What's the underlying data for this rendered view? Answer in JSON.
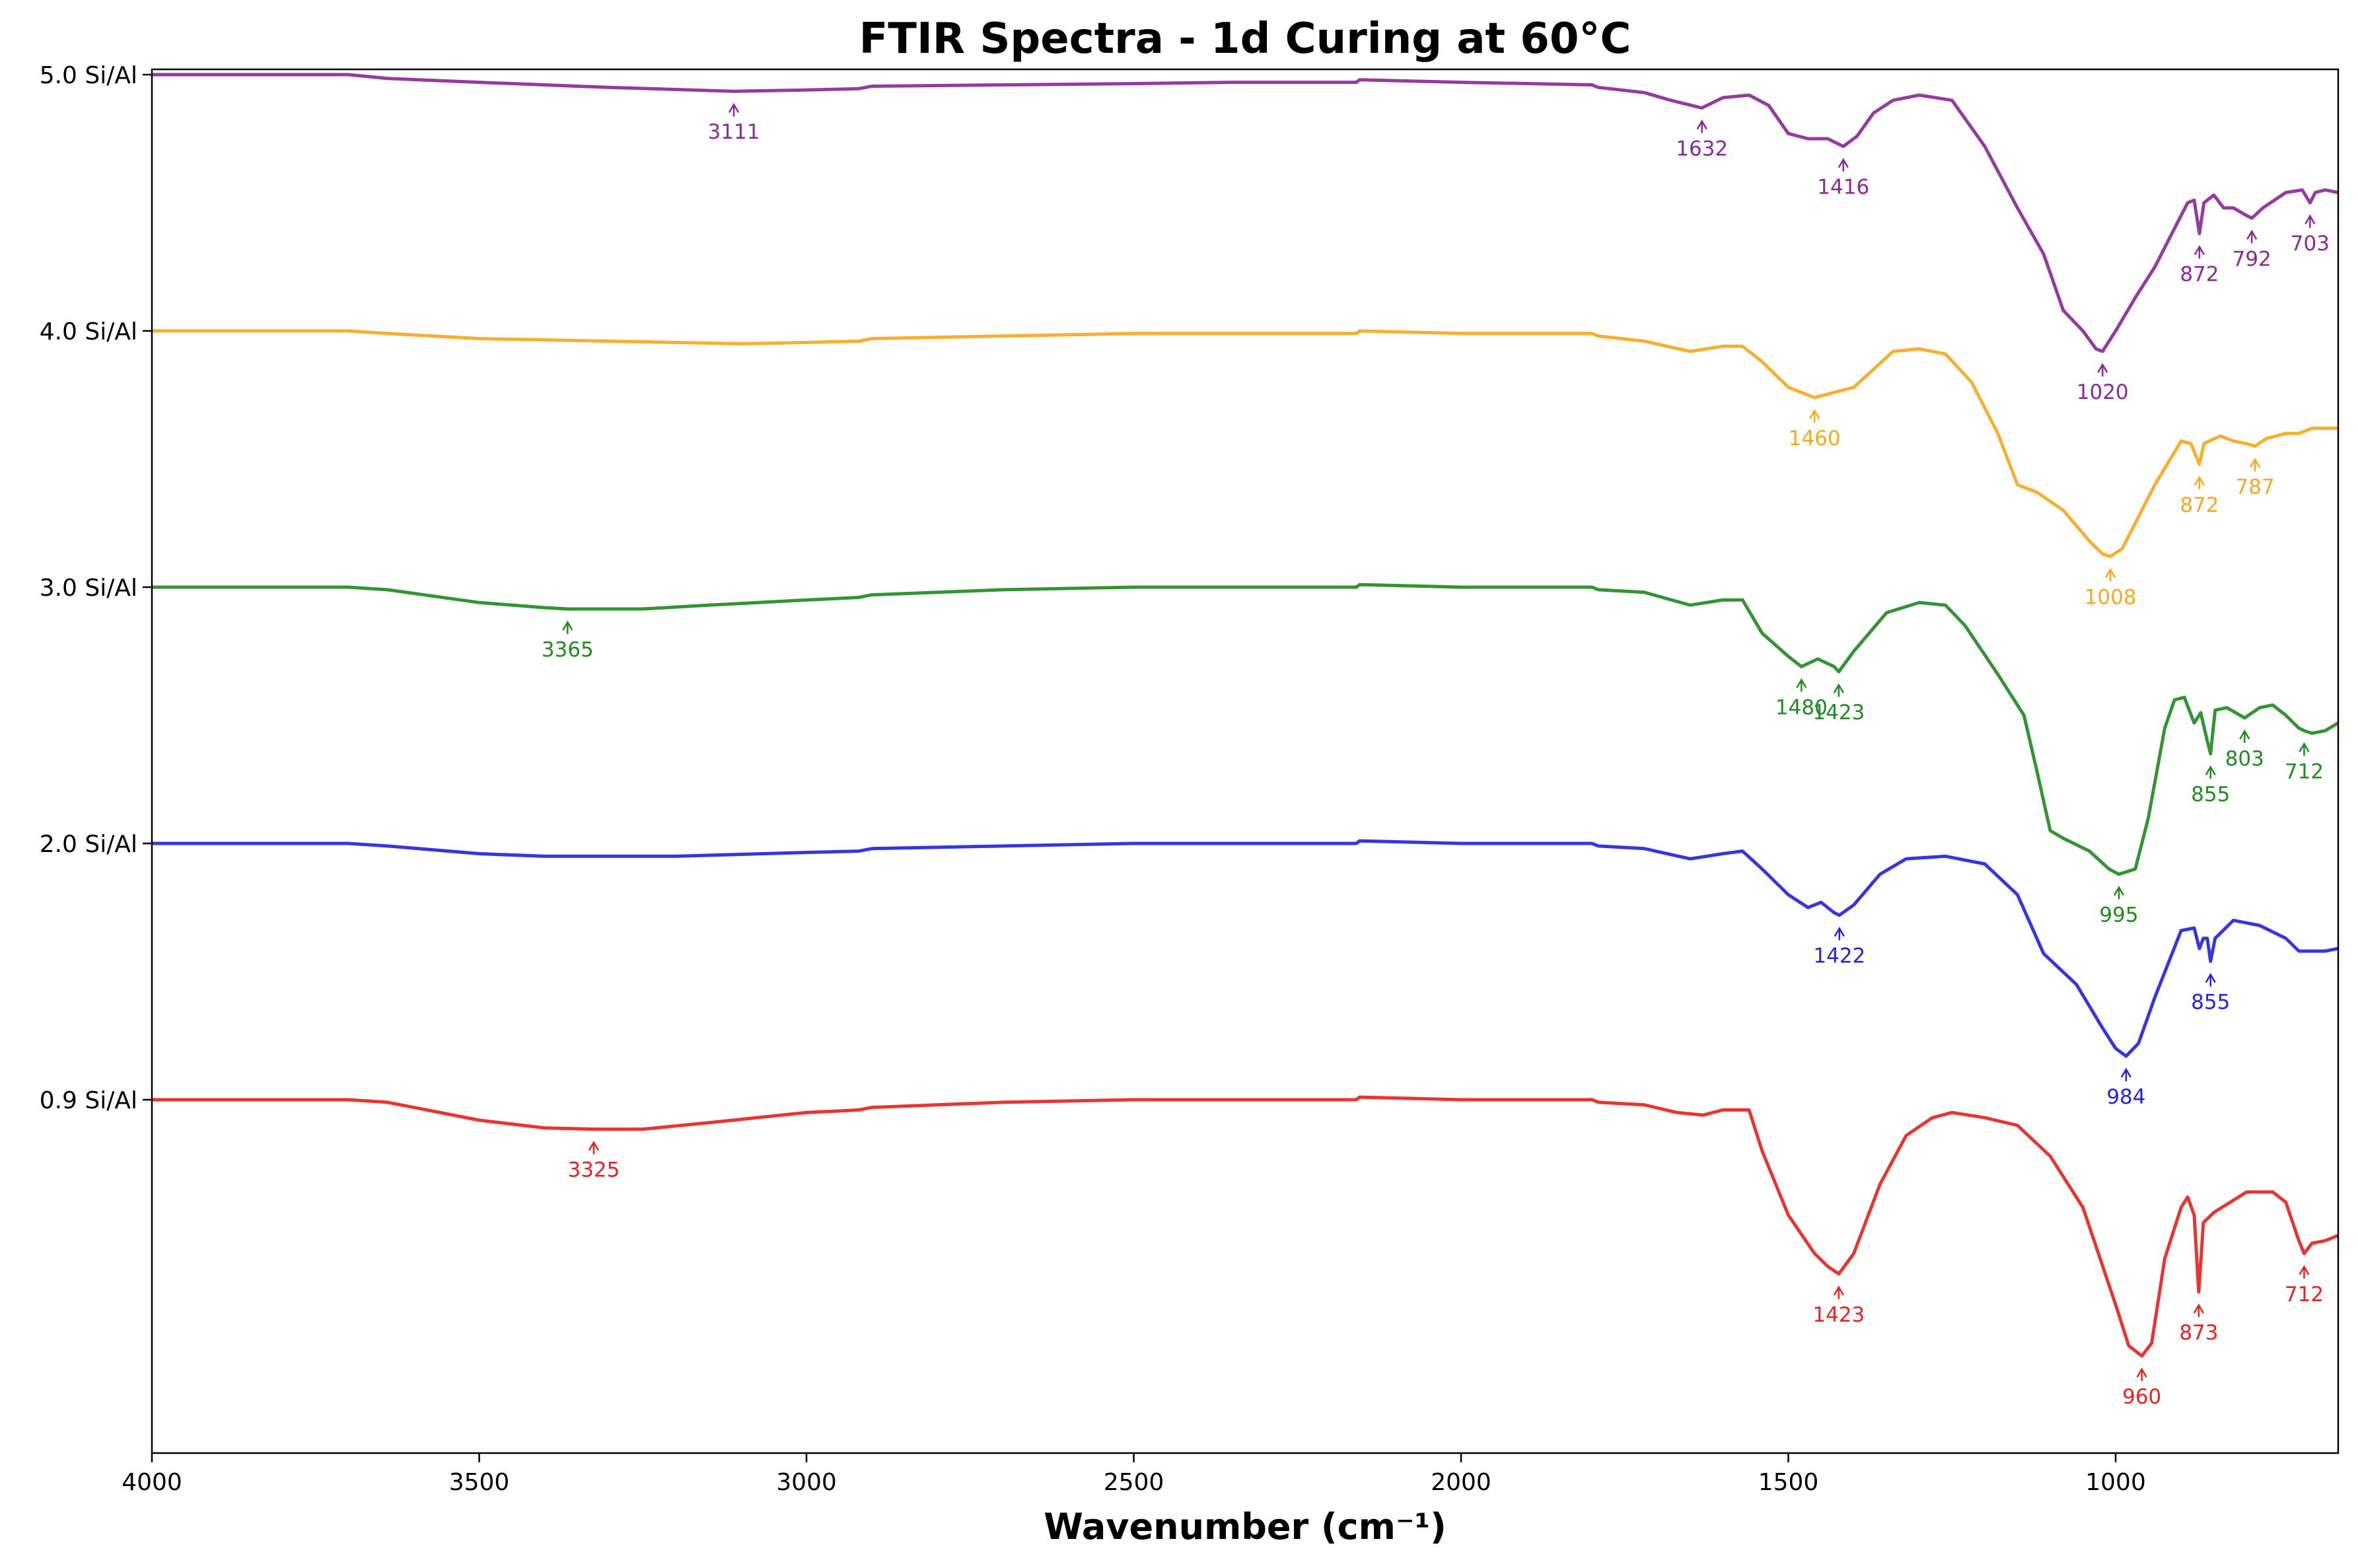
{
  "chart_data": {
    "type": "line",
    "title": "FTIR Spectra - 1d Curing at 60°C",
    "xlabel": "Wavenumber (cm⁻¹)",
    "ylabel": "",
    "xlim": [
      4000,
      660
    ],
    "x_reversed": true,
    "x_ticks": [
      4000,
      3500,
      3000,
      2500,
      2000,
      1500,
      1000
    ],
    "y_offset_step": 1.0,
    "grid": false,
    "legend": "none",
    "series": [
      {
        "name": "0.9 Si/Al",
        "color": "#e8231f",
        "peaks": [
          3325,
          1423,
          960,
          873,
          712
        ],
        "points": [
          [
            4000,
            0.0
          ],
          [
            3700,
            0.0
          ],
          [
            3640,
            -0.01
          ],
          [
            3500,
            -0.08
          ],
          [
            3400,
            -0.11
          ],
          [
            3325,
            -0.115
          ],
          [
            3250,
            -0.115
          ],
          [
            3150,
            -0.09
          ],
          [
            3000,
            -0.05
          ],
          [
            2920,
            -0.04
          ],
          [
            2900,
            -0.03
          ],
          [
            2800,
            -0.02
          ],
          [
            2700,
            -0.01
          ],
          [
            2500,
            0.0
          ],
          [
            2300,
            0.0
          ],
          [
            2160,
            0.0
          ],
          [
            2155,
            0.01
          ],
          [
            2000,
            0.0
          ],
          [
            1800,
            0.0
          ],
          [
            1790,
            -0.01
          ],
          [
            1720,
            -0.02
          ],
          [
            1670,
            -0.05
          ],
          [
            1630,
            -0.06
          ],
          [
            1600,
            -0.04
          ],
          [
            1560,
            -0.04
          ],
          [
            1540,
            -0.2
          ],
          [
            1500,
            -0.45
          ],
          [
            1460,
            -0.6
          ],
          [
            1440,
            -0.65
          ],
          [
            1423,
            -0.68
          ],
          [
            1400,
            -0.6
          ],
          [
            1360,
            -0.33
          ],
          [
            1320,
            -0.14
          ],
          [
            1280,
            -0.07
          ],
          [
            1250,
            -0.05
          ],
          [
            1200,
            -0.07
          ],
          [
            1150,
            -0.1
          ],
          [
            1100,
            -0.22
          ],
          [
            1050,
            -0.42
          ],
          [
            1000,
            -0.8
          ],
          [
            980,
            -0.96
          ],
          [
            960,
            -1.0
          ],
          [
            945,
            -0.95
          ],
          [
            925,
            -0.62
          ],
          [
            900,
            -0.42
          ],
          [
            890,
            -0.38
          ],
          [
            880,
            -0.45
          ],
          [
            873,
            -0.75
          ],
          [
            866,
            -0.48
          ],
          [
            850,
            -0.44
          ],
          [
            800,
            -0.36
          ],
          [
            760,
            -0.36
          ],
          [
            740,
            -0.4
          ],
          [
            720,
            -0.55
          ],
          [
            712,
            -0.6
          ],
          [
            700,
            -0.56
          ],
          [
            680,
            -0.55
          ],
          [
            660,
            -0.53
          ]
        ]
      },
      {
        "name": "2.0 Si/Al",
        "color": "#2424e0",
        "peaks": [
          1422,
          984,
          855
        ],
        "points": [
          [
            4000,
            0.0
          ],
          [
            3700,
            0.0
          ],
          [
            3640,
            -0.01
          ],
          [
            3500,
            -0.04
          ],
          [
            3400,
            -0.05
          ],
          [
            3300,
            -0.05
          ],
          [
            3200,
            -0.05
          ],
          [
            3000,
            -0.035
          ],
          [
            2920,
            -0.03
          ],
          [
            2900,
            -0.02
          ],
          [
            2700,
            -0.01
          ],
          [
            2500,
            0.0
          ],
          [
            2160,
            0.0
          ],
          [
            2155,
            0.01
          ],
          [
            2000,
            0.0
          ],
          [
            1800,
            0.0
          ],
          [
            1790,
            -0.01
          ],
          [
            1720,
            -0.02
          ],
          [
            1650,
            -0.06
          ],
          [
            1600,
            -0.04
          ],
          [
            1570,
            -0.03
          ],
          [
            1540,
            -0.1
          ],
          [
            1500,
            -0.2
          ],
          [
            1470,
            -0.25
          ],
          [
            1450,
            -0.23
          ],
          [
            1430,
            -0.27
          ],
          [
            1422,
            -0.28
          ],
          [
            1400,
            -0.24
          ],
          [
            1360,
            -0.12
          ],
          [
            1320,
            -0.06
          ],
          [
            1260,
            -0.05
          ],
          [
            1200,
            -0.08
          ],
          [
            1150,
            -0.2
          ],
          [
            1110,
            -0.43
          ],
          [
            1060,
            -0.55
          ],
          [
            1020,
            -0.72
          ],
          [
            1000,
            -0.8
          ],
          [
            984,
            -0.83
          ],
          [
            965,
            -0.78
          ],
          [
            940,
            -0.6
          ],
          [
            900,
            -0.34
          ],
          [
            880,
            -0.33
          ],
          [
            872,
            -0.41
          ],
          [
            866,
            -0.37
          ],
          [
            860,
            -0.37
          ],
          [
            855,
            -0.46
          ],
          [
            848,
            -0.37
          ],
          [
            820,
            -0.3
          ],
          [
            780,
            -0.32
          ],
          [
            740,
            -0.37
          ],
          [
            720,
            -0.42
          ],
          [
            700,
            -0.42
          ],
          [
            680,
            -0.42
          ],
          [
            660,
            -0.41
          ]
        ]
      },
      {
        "name": "3.0 Si/Al",
        "color": "#228b22",
        "peaks": [
          3365,
          1480,
          1423,
          995,
          855,
          803,
          712
        ],
        "points": [
          [
            4000,
            0.0
          ],
          [
            3700,
            0.0
          ],
          [
            3640,
            -0.01
          ],
          [
            3500,
            -0.06
          ],
          [
            3400,
            -0.08
          ],
          [
            3365,
            -0.085
          ],
          [
            3250,
            -0.085
          ],
          [
            3150,
            -0.07
          ],
          [
            3000,
            -0.05
          ],
          [
            2920,
            -0.04
          ],
          [
            2900,
            -0.03
          ],
          [
            2700,
            -0.01
          ],
          [
            2500,
            0.0
          ],
          [
            2160,
            0.0
          ],
          [
            2155,
            0.01
          ],
          [
            2000,
            0.0
          ],
          [
            1800,
            0.0
          ],
          [
            1790,
            -0.01
          ],
          [
            1720,
            -0.02
          ],
          [
            1650,
            -0.07
          ],
          [
            1600,
            -0.05
          ],
          [
            1570,
            -0.05
          ],
          [
            1540,
            -0.18
          ],
          [
            1500,
            -0.27
          ],
          [
            1480,
            -0.31
          ],
          [
            1455,
            -0.28
          ],
          [
            1430,
            -0.31
          ],
          [
            1423,
            -0.33
          ],
          [
            1400,
            -0.25
          ],
          [
            1350,
            -0.1
          ],
          [
            1300,
            -0.06
          ],
          [
            1260,
            -0.07
          ],
          [
            1230,
            -0.15
          ],
          [
            1180,
            -0.34
          ],
          [
            1140,
            -0.5
          ],
          [
            1120,
            -0.72
          ],
          [
            1100,
            -0.95
          ],
          [
            1080,
            -0.98
          ],
          [
            1040,
            -1.03
          ],
          [
            1010,
            -1.1
          ],
          [
            995,
            -1.12
          ],
          [
            970,
            -1.1
          ],
          [
            950,
            -0.9
          ],
          [
            925,
            -0.55
          ],
          [
            910,
            -0.44
          ],
          [
            895,
            -0.43
          ],
          [
            880,
            -0.53
          ],
          [
            870,
            -0.49
          ],
          [
            860,
            -0.6
          ],
          [
            855,
            -0.65
          ],
          [
            848,
            -0.48
          ],
          [
            830,
            -0.47
          ],
          [
            803,
            -0.51
          ],
          [
            780,
            -0.47
          ],
          [
            760,
            -0.46
          ],
          [
            740,
            -0.5
          ],
          [
            720,
            -0.55
          ],
          [
            712,
            -0.56
          ],
          [
            700,
            -0.57
          ],
          [
            680,
            -0.56
          ],
          [
            660,
            -0.53
          ]
        ]
      },
      {
        "name": "4.0 Si/Al",
        "color": "#f7a81e",
        "peaks": [
          1460,
          1008,
          872,
          787
        ],
        "points": [
          [
            4000,
            0.0
          ],
          [
            3700,
            0.0
          ],
          [
            3640,
            -0.01
          ],
          [
            3500,
            -0.03
          ],
          [
            3300,
            -0.04
          ],
          [
            3100,
            -0.05
          ],
          [
            3000,
            -0.045
          ],
          [
            2920,
            -0.04
          ],
          [
            2900,
            -0.03
          ],
          [
            2700,
            -0.02
          ],
          [
            2500,
            -0.01
          ],
          [
            2160,
            -0.01
          ],
          [
            2155,
            0.0
          ],
          [
            2000,
            -0.01
          ],
          [
            1800,
            -0.01
          ],
          [
            1790,
            -0.02
          ],
          [
            1720,
            -0.04
          ],
          [
            1650,
            -0.08
          ],
          [
            1600,
            -0.06
          ],
          [
            1570,
            -0.06
          ],
          [
            1540,
            -0.12
          ],
          [
            1500,
            -0.22
          ],
          [
            1460,
            -0.26
          ],
          [
            1430,
            -0.24
          ],
          [
            1400,
            -0.22
          ],
          [
            1370,
            -0.15
          ],
          [
            1340,
            -0.08
          ],
          [
            1300,
            -0.07
          ],
          [
            1260,
            -0.09
          ],
          [
            1220,
            -0.2
          ],
          [
            1180,
            -0.4
          ],
          [
            1150,
            -0.6
          ],
          [
            1120,
            -0.63
          ],
          [
            1080,
            -0.7
          ],
          [
            1040,
            -0.82
          ],
          [
            1020,
            -0.87
          ],
          [
            1008,
            -0.88
          ],
          [
            990,
            -0.85
          ],
          [
            970,
            -0.75
          ],
          [
            940,
            -0.6
          ],
          [
            900,
            -0.43
          ],
          [
            885,
            -0.44
          ],
          [
            872,
            -0.52
          ],
          [
            865,
            -0.44
          ],
          [
            840,
            -0.41
          ],
          [
            820,
            -0.43
          ],
          [
            800,
            -0.44
          ],
          [
            787,
            -0.45
          ],
          [
            770,
            -0.42
          ],
          [
            740,
            -0.4
          ],
          [
            720,
            -0.4
          ],
          [
            700,
            -0.38
          ],
          [
            680,
            -0.38
          ],
          [
            660,
            -0.38
          ]
        ]
      },
      {
        "name": "5.0 Si/Al",
        "color": "#8a2a96",
        "peaks": [
          3111,
          1632,
          1416,
          1020,
          872,
          792,
          703
        ],
        "points": [
          [
            4000,
            0.0
          ],
          [
            3700,
            0.0
          ],
          [
            3640,
            -0.015
          ],
          [
            3500,
            -0.03
          ],
          [
            3300,
            -0.05
          ],
          [
            3111,
            -0.065
          ],
          [
            3000,
            -0.06
          ],
          [
            2920,
            -0.055
          ],
          [
            2900,
            -0.045
          ],
          [
            2700,
            -0.04
          ],
          [
            2500,
            -0.035
          ],
          [
            2350,
            -0.03
          ],
          [
            2160,
            -0.03
          ],
          [
            2155,
            -0.02
          ],
          [
            2000,
            -0.03
          ],
          [
            1800,
            -0.04
          ],
          [
            1790,
            -0.05
          ],
          [
            1720,
            -0.07
          ],
          [
            1680,
            -0.1
          ],
          [
            1632,
            -0.13
          ],
          [
            1600,
            -0.09
          ],
          [
            1560,
            -0.08
          ],
          [
            1530,
            -0.12
          ],
          [
            1500,
            -0.23
          ],
          [
            1470,
            -0.25
          ],
          [
            1440,
            -0.25
          ],
          [
            1416,
            -0.28
          ],
          [
            1395,
            -0.24
          ],
          [
            1370,
            -0.15
          ],
          [
            1340,
            -0.1
          ],
          [
            1300,
            -0.08
          ],
          [
            1250,
            -0.1
          ],
          [
            1200,
            -0.28
          ],
          [
            1150,
            -0.52
          ],
          [
            1110,
            -0.7
          ],
          [
            1080,
            -0.92
          ],
          [
            1050,
            -1.0
          ],
          [
            1030,
            -1.07
          ],
          [
            1020,
            -1.08
          ],
          [
            1000,
            -1.0
          ],
          [
            970,
            -0.87
          ],
          [
            940,
            -0.75
          ],
          [
            910,
            -0.6
          ],
          [
            890,
            -0.5
          ],
          [
            880,
            -0.49
          ],
          [
            872,
            -0.62
          ],
          [
            865,
            -0.5
          ],
          [
            850,
            -0.47
          ],
          [
            835,
            -0.52
          ],
          [
            820,
            -0.52
          ],
          [
            800,
            -0.55
          ],
          [
            792,
            -0.56
          ],
          [
            775,
            -0.52
          ],
          [
            740,
            -0.46
          ],
          [
            715,
            -0.45
          ],
          [
            703,
            -0.5
          ],
          [
            695,
            -0.46
          ],
          [
            680,
            -0.45
          ],
          [
            660,
            -0.46
          ]
        ]
      }
    ]
  }
}
